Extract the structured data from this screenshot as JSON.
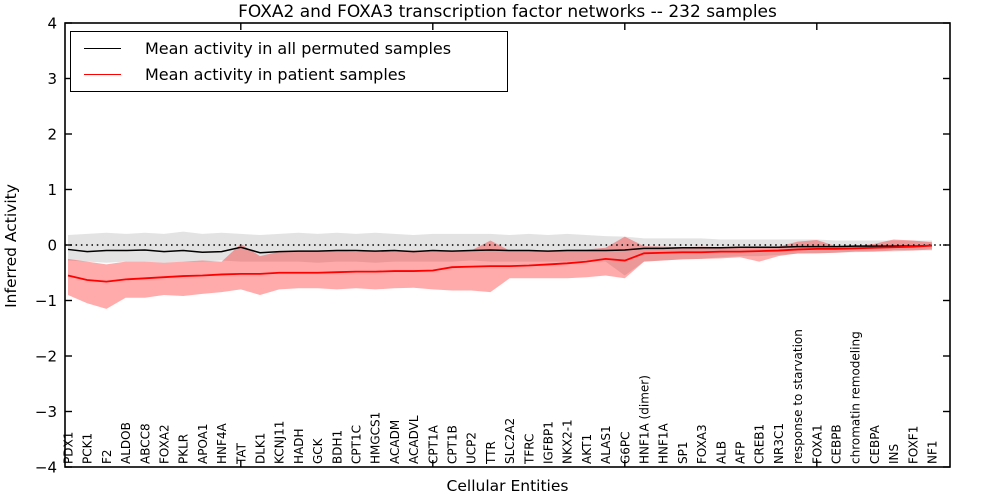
{
  "title": "FOXA2 and FOXA3 transcription factor networks -- 232 samples",
  "legend": {
    "items": [
      {
        "label": "Mean activity in all permuted samples",
        "color": "#000000"
      },
      {
        "label": "Mean activity in patient samples",
        "color": "#ff0000"
      }
    ]
  },
  "colors": {
    "permuted_line": "#000000",
    "patient_line": "#ff0000",
    "permuted_band": "rgba(0,0,0,0.11)",
    "patient_band": "rgba(255,0,0,0.33)",
    "frame": "#000000"
  },
  "chart_data": {
    "type": "line",
    "title": "FOXA2 and FOXA3 transcription factor networks -- 232 samples",
    "xlabel": "Cellular Entities",
    "ylabel": "Inferred Activity",
    "ylim": [
      -4,
      4
    ],
    "yticks": [
      -4,
      -3,
      -2,
      -1,
      0,
      1,
      2,
      3,
      4
    ],
    "top_axis_tick_positions": [
      10,
      20,
      30,
      40
    ],
    "grid": false,
    "zero_line_style": "dotted",
    "legend_position": "upper left",
    "categories": [
      "PDX1",
      "PCK1",
      "F2",
      "ALDOB",
      "ABCC8",
      "FOXA2",
      "PKLR",
      "APOA1",
      "HNF4A",
      "TAT",
      "DLK1",
      "KCNJ11",
      "HADH",
      "GCK",
      "BDH1",
      "CPT1C",
      "HMGCS1",
      "ACADM",
      "ACADVL",
      "CPT1A",
      "CPT1B",
      "UCP2",
      "TTR",
      "SLC2A2",
      "TFRC",
      "IGFBP1",
      "NKX2-1",
      "AKT1",
      "ALAS1",
      "G6PC",
      "HNF1A (dimer)",
      "HNF1A",
      "SP1",
      "FOXA3",
      "ALB",
      "AFP",
      "CREB1",
      "NR3C1",
      "response to starvation",
      "FOXA1",
      "CEBPB",
      "chromatin remodeling",
      "CEBPA",
      "INS",
      "FOXF1",
      "NF1"
    ],
    "series": [
      {
        "name": "Mean activity in all permuted samples",
        "color": "#000000",
        "values": [
          -0.08,
          -0.12,
          -0.1,
          -0.1,
          -0.09,
          -0.12,
          -0.1,
          -0.13,
          -0.12,
          -0.04,
          -0.14,
          -0.12,
          -0.11,
          -0.11,
          -0.1,
          -0.1,
          -0.11,
          -0.1,
          -0.12,
          -0.1,
          -0.11,
          -0.1,
          -0.09,
          -0.1,
          -0.1,
          -0.11,
          -0.1,
          -0.1,
          -0.1,
          -0.09,
          -0.06,
          -0.06,
          -0.05,
          -0.05,
          -0.05,
          -0.04,
          -0.04,
          -0.04,
          -0.03,
          -0.03,
          -0.03,
          -0.02,
          -0.02,
          -0.02,
          -0.02,
          -0.01
        ]
      },
      {
        "name": "Mean activity in patient samples",
        "color": "#ff0000",
        "values": [
          -0.55,
          -0.63,
          -0.66,
          -0.62,
          -0.6,
          -0.58,
          -0.56,
          -0.55,
          -0.53,
          -0.52,
          -0.52,
          -0.5,
          -0.5,
          -0.5,
          -0.49,
          -0.48,
          -0.48,
          -0.47,
          -0.47,
          -0.46,
          -0.4,
          -0.39,
          -0.38,
          -0.38,
          -0.37,
          -0.35,
          -0.33,
          -0.3,
          -0.25,
          -0.28,
          -0.15,
          -0.14,
          -0.13,
          -0.13,
          -0.12,
          -0.12,
          -0.11,
          -0.1,
          -0.08,
          -0.07,
          -0.07,
          -0.06,
          -0.05,
          -0.04,
          -0.03,
          -0.01
        ]
      }
    ],
    "bands": [
      {
        "name": "permuted-std-band",
        "color": "rgba(0,0,0,0.11)",
        "upper": [
          0.18,
          0.2,
          0.22,
          0.2,
          0.22,
          0.2,
          0.24,
          0.2,
          0.22,
          0.2,
          0.18,
          0.2,
          0.22,
          0.2,
          0.22,
          0.2,
          0.22,
          0.2,
          0.18,
          0.2,
          0.2,
          0.2,
          0.2,
          0.18,
          0.2,
          0.18,
          0.2,
          0.18,
          0.16,
          0.15,
          0.12,
          0.12,
          0.12,
          0.12,
          0.1,
          0.1,
          0.1,
          0.1,
          0.1,
          0.1,
          0.08,
          0.08,
          0.08,
          0.08,
          0.08,
          0.08
        ],
        "lower": [
          -0.28,
          -0.3,
          -0.32,
          -0.3,
          -0.3,
          -0.32,
          -0.3,
          -0.3,
          -0.28,
          -0.3,
          -0.3,
          -0.3,
          -0.3,
          -0.32,
          -0.3,
          -0.3,
          -0.32,
          -0.3,
          -0.3,
          -0.3,
          -0.3,
          -0.28,
          -0.3,
          -0.3,
          -0.3,
          -0.3,
          -0.3,
          -0.28,
          -0.3,
          -0.55,
          -0.3,
          -0.28,
          -0.26,
          -0.25,
          -0.22,
          -0.2,
          -0.2,
          -0.18,
          -0.16,
          -0.15,
          -0.14,
          -0.13,
          -0.12,
          -0.12,
          -0.1,
          -0.1
        ]
      },
      {
        "name": "patient-std-band",
        "color": "rgba(255,0,0,0.33)",
        "upper": [
          -0.25,
          -0.3,
          -0.35,
          -0.3,
          -0.3,
          -0.32,
          -0.3,
          -0.28,
          -0.3,
          0.02,
          -0.2,
          -0.12,
          -0.12,
          -0.12,
          -0.1,
          -0.12,
          -0.1,
          -0.12,
          -0.1,
          -0.12,
          -0.1,
          -0.1,
          0.08,
          -0.1,
          -0.1,
          -0.1,
          -0.08,
          -0.08,
          -0.05,
          0.15,
          -0.02,
          -0.03,
          -0.04,
          -0.03,
          -0.04,
          -0.03,
          -0.04,
          -0.03,
          0.06,
          0.09,
          -0.02,
          -0.02,
          0.02,
          0.1,
          0.08,
          0.05
        ],
        "lower": [
          -0.9,
          -1.05,
          -1.15,
          -0.95,
          -0.95,
          -0.9,
          -0.92,
          -0.88,
          -0.85,
          -0.8,
          -0.9,
          -0.8,
          -0.78,
          -0.78,
          -0.8,
          -0.78,
          -0.8,
          -0.78,
          -0.77,
          -0.8,
          -0.82,
          -0.82,
          -0.85,
          -0.6,
          -0.6,
          -0.6,
          -0.6,
          -0.58,
          -0.55,
          -0.6,
          -0.3,
          -0.28,
          -0.26,
          -0.25,
          -0.24,
          -0.22,
          -0.3,
          -0.2,
          -0.15,
          -0.15,
          -0.14,
          -0.12,
          -0.12,
          -0.1,
          -0.1,
          -0.08
        ]
      }
    ]
  }
}
